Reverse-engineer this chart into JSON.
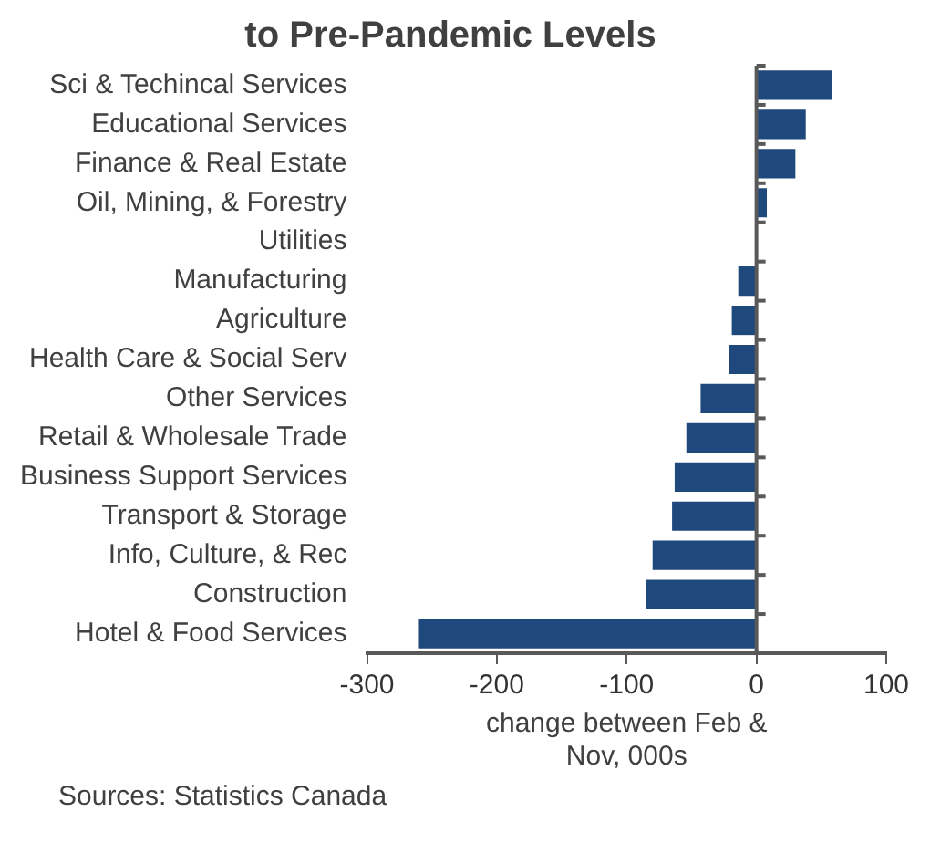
{
  "chart_data": {
    "type": "bar",
    "orientation": "horizontal",
    "title": "to Pre-Pandemic Levels",
    "categories": [
      "Sci & Techincal Services",
      "Educational Services",
      "Finance & Real Estate",
      "Oil, Mining, & Forestry",
      "Utilities",
      "Manufacturing",
      "Agriculture",
      "Health Care & Social Serv",
      "Other Services",
      "Retail & Wholesale Trade",
      "Business Support Services",
      "Transport & Storage",
      "Info, Culture, & Rec",
      "Construction",
      "Hotel & Food Services"
    ],
    "values": [
      58,
      38,
      30,
      8,
      0,
      -14,
      -19,
      -21,
      -43,
      -54,
      -63,
      -65,
      -80,
      -85,
      -260
    ],
    "color": "#1f497d",
    "xlabel": "change between Feb & Nov, 000s",
    "xlim": [
      -300,
      100
    ],
    "xticks": [
      -300,
      -200,
      -100,
      0,
      100
    ],
    "annotations": [
      "Sources: Statistics Canada"
    ]
  }
}
